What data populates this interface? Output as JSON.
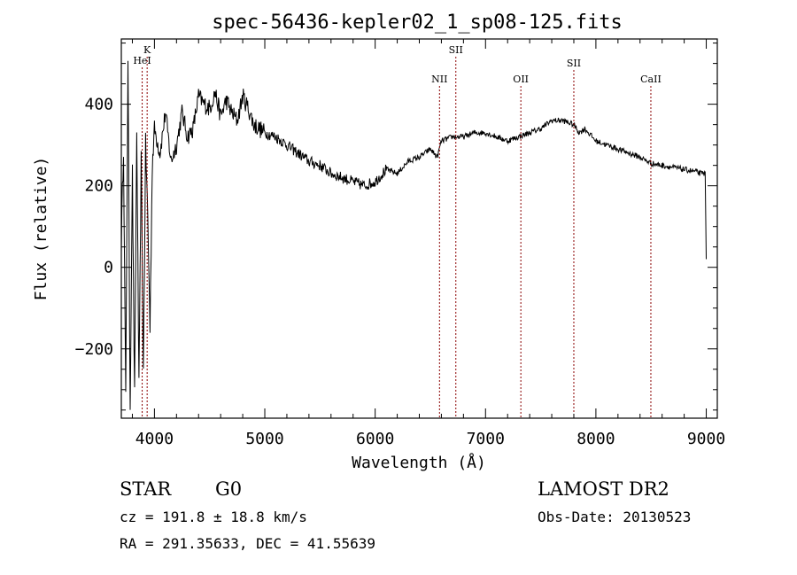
{
  "chart_data": {
    "type": "line",
    "title": "spec-56436-kepler02_1_sp08-125.fits",
    "xlabel": "Wavelength (Å)",
    "ylabel": "Flux (relative)",
    "xlim": [
      3700,
      9100
    ],
    "ylim": [
      -370,
      560
    ],
    "xticks": [
      4000,
      5000,
      6000,
      7000,
      8000,
      9000
    ],
    "yticks": [
      -200,
      0,
      200,
      400
    ],
    "grid": false,
    "series": [
      {
        "name": "flux",
        "x": [
          3700,
          3720,
          3740,
          3760,
          3780,
          3800,
          3820,
          3840,
          3860,
          3880,
          3900,
          3920,
          3940,
          3960,
          3980,
          4000,
          4050,
          4100,
          4150,
          4200,
          4250,
          4300,
          4350,
          4400,
          4450,
          4500,
          4550,
          4600,
          4650,
          4700,
          4750,
          4800,
          4850,
          4900,
          4950,
          5000,
          5100,
          5200,
          5300,
          5400,
          5500,
          5600,
          5700,
          5800,
          5900,
          6000,
          6100,
          6200,
          6300,
          6400,
          6500,
          6563,
          6600,
          6700,
          6800,
          6900,
          7000,
          7100,
          7200,
          7300,
          7400,
          7500,
          7600,
          7700,
          7800,
          7850,
          7900,
          8000,
          8100,
          8200,
          8300,
          8400,
          8500,
          8600,
          8700,
          8800,
          8900,
          8950,
          8990,
          9000
        ],
        "y": [
          60,
          300,
          -330,
          520,
          -340,
          230,
          -320,
          330,
          -300,
          260,
          -260,
          300,
          120,
          -150,
          250,
          340,
          280,
          380,
          260,
          300,
          380,
          320,
          340,
          420,
          400,
          390,
          430,
          370,
          410,
          380,
          360,
          420,
          390,
          350,
          340,
          330,
          320,
          300,
          280,
          260,
          250,
          230,
          220,
          210,
          200,
          210,
          240,
          230,
          260,
          270,
          290,
          270,
          310,
          320,
          320,
          330,
          330,
          320,
          310,
          320,
          330,
          340,
          360,
          360,
          350,
          330,
          340,
          310,
          300,
          290,
          280,
          270,
          255,
          250,
          245,
          240,
          235,
          230,
          230,
          20
        ]
      }
    ],
    "lines": [
      {
        "name": "HeI",
        "x": 3889
      },
      {
        "name": "K",
        "x": 3934
      },
      {
        "name": "NII",
        "x": 6583
      },
      {
        "name": "SII",
        "x": 6731
      },
      {
        "name": "OII",
        "x": 7320
      },
      {
        "name": "SII",
        "x": 7800
      },
      {
        "name": "CaII",
        "x": 8498
      }
    ],
    "line_color": "#8b0000"
  },
  "info": {
    "object": "STAR",
    "subclass": "G0",
    "survey": "LAMOST DR2",
    "cz": "cz = 191.8 ± 18.8 km/s",
    "obs_date": "Obs-Date: 20130523",
    "coords": "RA = 291.35633, DEC =  41.55639"
  }
}
